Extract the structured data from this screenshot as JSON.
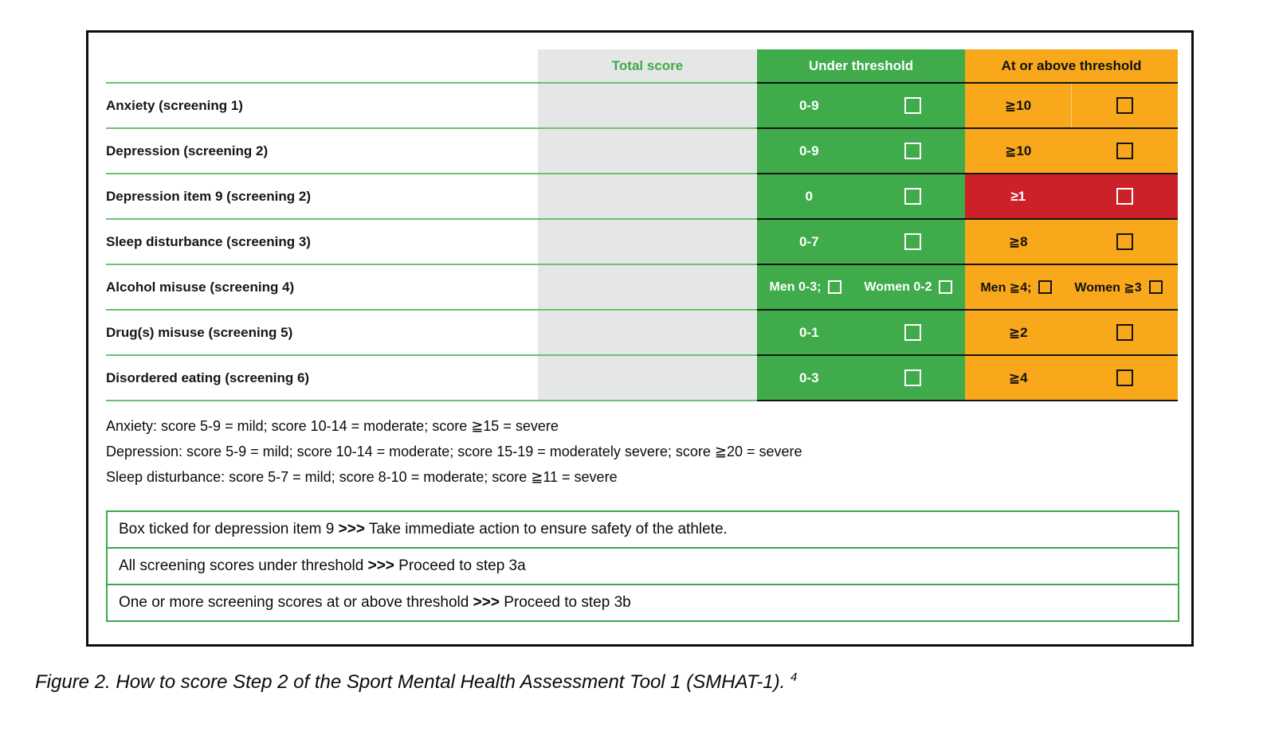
{
  "figure": {
    "table": {
      "headers": {
        "total_score": "Total score",
        "under_threshold": "Under threshold",
        "at_or_above_threshold": "At or above threshold"
      },
      "rows": [
        {
          "label": "Anxiety (screening 1)",
          "under": "0-9",
          "above": "≧10"
        },
        {
          "label": "Depression (screening 2)",
          "under": "0-9",
          "above": "≧10"
        },
        {
          "label": "Depression item 9 (screening 2)",
          "under": "0",
          "above": "≥1"
        },
        {
          "label": "Sleep disturbance (screening 3)",
          "under": "0-7",
          "above": "≧8"
        },
        {
          "label": "Alcohol misuse (screening 4)",
          "under_men": "Men 0-3;",
          "under_women": "Women 0-2",
          "above_men": "Men ≧4;",
          "above_women": "Women ≧3"
        },
        {
          "label": "Drug(s) misuse (screening 5)",
          "under": "0-1",
          "above": "≧2"
        },
        {
          "label": "Disordered eating (screening 6)",
          "under": "0-3",
          "above": "≧4"
        }
      ]
    },
    "notes": [
      "Anxiety: score 5-9 = mild; score 10-14 = moderate; score ≧15 = severe",
      "Depression: score 5-9 = mild; score 10-14 = moderate; score 15-19 = moderately severe; score ≧20 = severe",
      "Sleep disturbance: score 5-7 = mild; score 8-10 = moderate; score ≧11 = severe"
    ],
    "action_boxes": [
      {
        "before": "Box ticked for depression item 9 ",
        "arrows": ">>>",
        "after": " Take immediate action to ensure safety of the athlete."
      },
      {
        "before": "All screening scores under threshold ",
        "arrows": ">>>",
        "after": " Proceed to step 3a"
      },
      {
        "before": "One or more screening scores at or above threshold ",
        "arrows": ">>>",
        "after": " Proceed to step 3b"
      }
    ]
  },
  "caption": {
    "text": "Figure 2. How to score Step 2 of the Sport Mental Health Assessment Tool 1 (SMHAT-1). ",
    "reference": "4"
  },
  "colors": {
    "green": "#3FAB4A",
    "orange": "#F9A81B",
    "red": "#CD2129",
    "gray": "#E5E6E6",
    "row_line_green": "#70C06F",
    "box_border_green": "#3BAA4B"
  }
}
